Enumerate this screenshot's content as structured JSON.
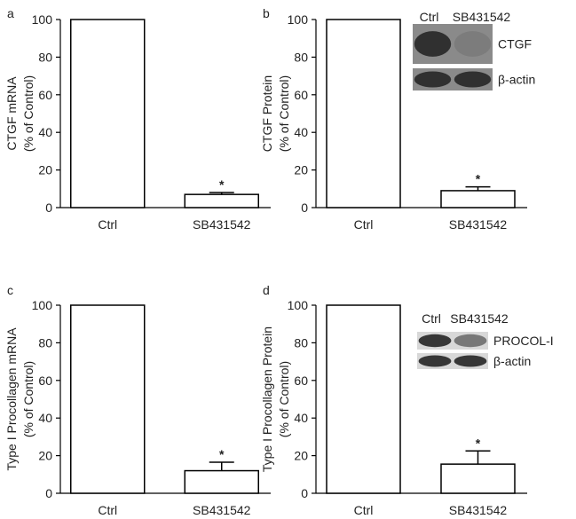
{
  "chart_data": [
    {
      "type": "bar",
      "panel": "a",
      "y_label": [
        "CTGF mRNA",
        "(% of Control)"
      ],
      "categories": [
        "Ctrl",
        "SB431542"
      ],
      "values": [
        100,
        7
      ],
      "errors": [
        null,
        1
      ],
      "annotation": "*",
      "ylim": [
        0,
        100
      ],
      "yticks": [
        0,
        20,
        40,
        60,
        80,
        100
      ],
      "color": "#ffffff"
    },
    {
      "type": "bar",
      "panel": "b",
      "y_label": [
        "CTGF Protein",
        "(% of Control)"
      ],
      "categories": [
        "Ctrl",
        "SB431542"
      ],
      "values": [
        100,
        9
      ],
      "errors": [
        null,
        2
      ],
      "annotation": "*",
      "ylim": [
        0,
        100
      ],
      "yticks": [
        0,
        20,
        40,
        60,
        80,
        100
      ],
      "color": "#ffffff",
      "inset": {
        "columns": [
          "Ctrl",
          "SB431542"
        ],
        "rows": [
          "CTGF",
          "β-actin"
        ]
      }
    },
    {
      "type": "bar",
      "panel": "c",
      "y_label": [
        "Type I Procollagen mRNA",
        "(% of Control)"
      ],
      "categories": [
        "Ctrl",
        "SB431542"
      ],
      "values": [
        100,
        12
      ],
      "errors": [
        null,
        4.5
      ],
      "annotation": "*",
      "ylim": [
        0,
        100
      ],
      "yticks": [
        0,
        20,
        40,
        60,
        80,
        100
      ],
      "color": "#ffffff"
    },
    {
      "type": "bar",
      "panel": "d",
      "y_label": [
        "Type I Procollagen Protein",
        "(% of Control)"
      ],
      "categories": [
        "Ctrl",
        "SB431542"
      ],
      "values": [
        100,
        15.5
      ],
      "errors": [
        null,
        7
      ],
      "annotation": "*",
      "ylim": [
        0,
        100
      ],
      "yticks": [
        0,
        20,
        40,
        60,
        80,
        100
      ],
      "color": "#ffffff",
      "inset": {
        "columns": [
          "Ctrl",
          "SB431542"
        ],
        "rows": [
          "PROCOL-I",
          "β-actin"
        ]
      }
    }
  ]
}
